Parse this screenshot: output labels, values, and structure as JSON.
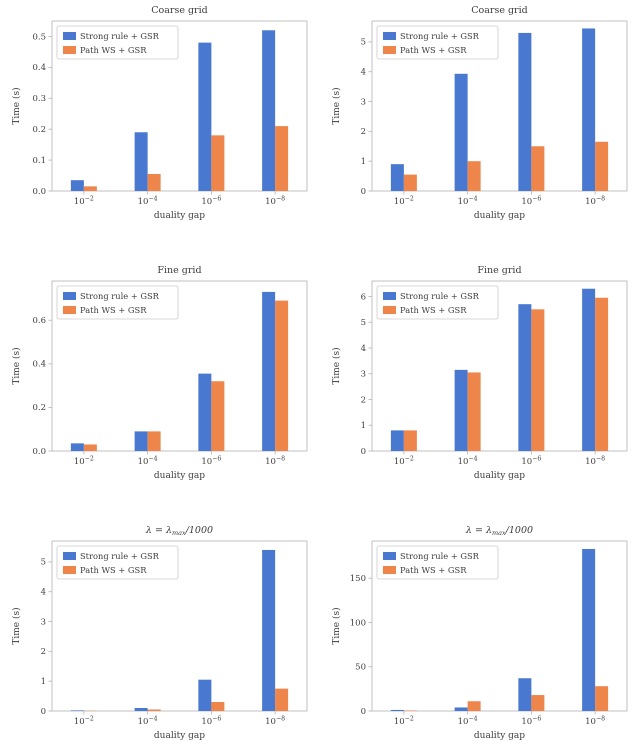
{
  "figure_title": "",
  "palette": {
    "blue": "#4878D0",
    "orange": "#EE854A",
    "spine": "#b3b3b3",
    "text": "#3d3d3d",
    "legend_border": "#cccccc"
  },
  "legend_labels": [
    "Strong rule + GSR",
    "Path WS + GSR"
  ],
  "chart_data": [
    {
      "type": "bar",
      "title": "Coarse grid",
      "italic_title": false,
      "categories": [
        "10^−2",
        "10^−4",
        "10^−6",
        "10^−8"
      ],
      "xlabel": "duality gap",
      "ylabel": "Time (s)",
      "ylim": [
        0,
        0.55
      ],
      "yticks": [
        0,
        0.1,
        0.2,
        0.3,
        0.4,
        0.5
      ],
      "ytick_labels": [
        "0.0",
        "0.1",
        "0.2",
        "0.3",
        "0.4",
        "0.5"
      ],
      "legend_position": "upper left",
      "grid": false,
      "series": [
        {
          "name": "Strong rule + GSR",
          "color": "blue",
          "values": [
            0.035,
            0.19,
            0.48,
            0.52
          ]
        },
        {
          "name": "Path WS + GSR",
          "color": "orange",
          "values": [
            0.015,
            0.055,
            0.18,
            0.21
          ]
        }
      ]
    },
    {
      "type": "bar",
      "title": "Coarse grid",
      "italic_title": false,
      "categories": [
        "10^−2",
        "10^−4",
        "10^−6",
        "10^−8"
      ],
      "xlabel": "duality gap",
      "ylabel": "Time (s)",
      "ylim": [
        0,
        5.7
      ],
      "yticks": [
        0,
        1,
        2,
        3,
        4,
        5
      ],
      "ytick_labels": [
        "0",
        "1",
        "2",
        "3",
        "4",
        "5"
      ],
      "legend_position": "upper left",
      "grid": false,
      "series": [
        {
          "name": "Strong rule + GSR",
          "color": "blue",
          "values": [
            0.9,
            3.93,
            5.3,
            5.45
          ]
        },
        {
          "name": "Path WS + GSR",
          "color": "orange",
          "values": [
            0.55,
            1.0,
            1.5,
            1.65
          ]
        }
      ]
    },
    {
      "type": "bar",
      "title": "Fine grid",
      "italic_title": false,
      "categories": [
        "10^−2",
        "10^−4",
        "10^−6",
        "10^−8"
      ],
      "xlabel": "duality gap",
      "ylabel": "Time (s)",
      "ylim": [
        0,
        0.78
      ],
      "yticks": [
        0,
        0.2,
        0.4,
        0.6
      ],
      "ytick_labels": [
        "0.0",
        "0.2",
        "0.4",
        "0.6"
      ],
      "legend_position": "upper left",
      "grid": false,
      "series": [
        {
          "name": "Strong rule + GSR",
          "color": "blue",
          "values": [
            0.035,
            0.09,
            0.355,
            0.73
          ]
        },
        {
          "name": "Path WS + GSR",
          "color": "orange",
          "values": [
            0.03,
            0.09,
            0.32,
            0.69
          ]
        }
      ]
    },
    {
      "type": "bar",
      "title": "Fine grid",
      "italic_title": false,
      "categories": [
        "10^−2",
        "10^−4",
        "10^−6",
        "10^−8"
      ],
      "xlabel": "duality gap",
      "ylabel": "Time (s)",
      "ylim": [
        0,
        6.6
      ],
      "yticks": [
        0,
        1,
        2,
        3,
        4,
        5,
        6
      ],
      "ytick_labels": [
        "0",
        "1",
        "2",
        "3",
        "4",
        "5",
        "6"
      ],
      "legend_position": "upper left",
      "grid": false,
      "series": [
        {
          "name": "Strong rule + GSR",
          "color": "blue",
          "values": [
            0.8,
            3.15,
            5.7,
            6.3
          ]
        },
        {
          "name": "Path WS + GSR",
          "color": "orange",
          "values": [
            0.8,
            3.05,
            5.5,
            5.95
          ]
        }
      ]
    },
    {
      "type": "bar",
      "title": "λ = λ_max/1000",
      "italic_title": true,
      "categories": [
        "10^−2",
        "10^−4",
        "10^−6",
        "10^−8"
      ],
      "xlabel": "duality gap",
      "ylabel": "Time (s)",
      "ylim": [
        0,
        5.7
      ],
      "yticks": [
        0,
        1,
        2,
        3,
        4,
        5
      ],
      "ytick_labels": [
        "0",
        "1",
        "2",
        "3",
        "4",
        "5"
      ],
      "legend_position": "upper left",
      "grid": false,
      "series": [
        {
          "name": "Strong rule + GSR",
          "color": "blue",
          "values": [
            0.02,
            0.1,
            1.05,
            5.4
          ]
        },
        {
          "name": "Path WS + GSR",
          "color": "orange",
          "values": [
            0.01,
            0.05,
            0.3,
            0.75
          ]
        }
      ]
    },
    {
      "type": "bar",
      "title": "λ = λ_max/1000",
      "italic_title": true,
      "categories": [
        "10^−2",
        "10^−4",
        "10^−6",
        "10^−8"
      ],
      "xlabel": "duality gap",
      "ylabel": "Time (s)",
      "ylim": [
        0,
        192
      ],
      "yticks": [
        0,
        50,
        100,
        150
      ],
      "ytick_labels": [
        "0",
        "50",
        "100",
        "150"
      ],
      "legend_position": "upper left",
      "grid": false,
      "series": [
        {
          "name": "Strong rule + GSR",
          "color": "blue",
          "values": [
            1.2,
            4,
            37,
            183
          ]
        },
        {
          "name": "Path WS + GSR",
          "color": "orange",
          "values": [
            0.6,
            11,
            18,
            28
          ]
        }
      ]
    }
  ]
}
